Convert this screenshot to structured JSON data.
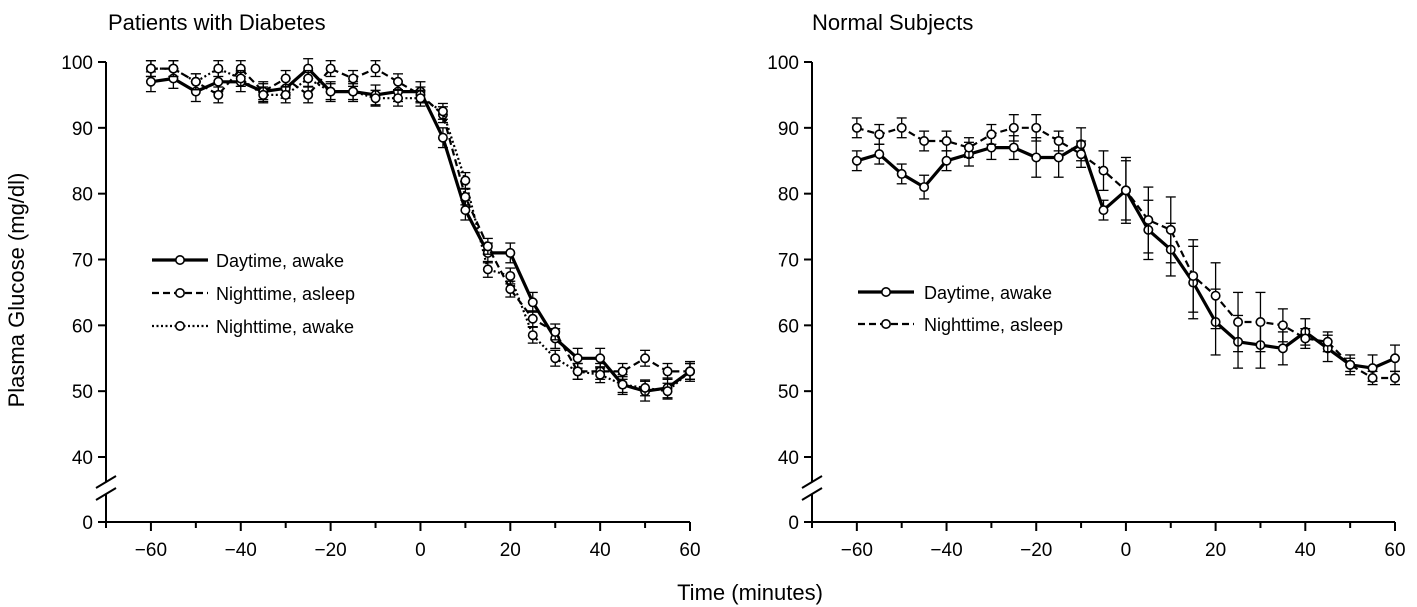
{
  "figure": {
    "ylabel": "Plasma Glucose (mg/dl)",
    "xlabel": "Time (minutes)"
  },
  "chart_data": [
    {
      "type": "line",
      "title": "Patients with Diabetes",
      "xlabel": "Time (minutes)",
      "ylabel": "Plasma Glucose (mg/dl)",
      "xlim": [
        -70,
        60
      ],
      "ylim": [
        0,
        100
      ],
      "axis_break": [
        0,
        40
      ],
      "x_ticks": [
        "−60",
        "−40",
        "−20",
        "0",
        "20",
        "40",
        "60"
      ],
      "y_ticks": [
        "0",
        "40",
        "50",
        "60",
        "70",
        "80",
        "90",
        "100"
      ],
      "legend_position": "center-left",
      "grid": false,
      "series": [
        {
          "name": "Daytime, awake",
          "style": "solid",
          "x": [
            -60,
            -55,
            -50,
            -45,
            -40,
            -35,
            -30,
            -25,
            -20,
            -15,
            -10,
            -5,
            0,
            5,
            10,
            15,
            20,
            25,
            30,
            35,
            40,
            45,
            50,
            55,
            60
          ],
          "y": [
            97,
            97.5,
            95.5,
            97,
            97,
            95.5,
            96,
            99,
            95.5,
            95.5,
            95,
            95.5,
            95.5,
            88.5,
            77.5,
            71,
            71,
            63.5,
            58,
            55,
            55,
            51,
            50,
            50.5,
            53
          ],
          "err": [
            1.5,
            1.5,
            1.5,
            1.5,
            1.5,
            1.5,
            1.5,
            1.5,
            1.5,
            1.5,
            1.5,
            1.5,
            1.5,
            1.5,
            1.5,
            1.5,
            1.5,
            1.5,
            1.5,
            1.5,
            1.5,
            1.5,
            1.5,
            1.5,
            1.5
          ]
        },
        {
          "name": "Nighttime, asleep",
          "style": "dashed",
          "x": [
            -60,
            -55,
            -50,
            -45,
            -40,
            -35,
            -30,
            -25,
            -20,
            -15,
            -10,
            -5,
            0,
            5,
            10,
            15,
            20,
            25,
            30,
            35,
            40,
            45,
            50,
            55,
            60
          ],
          "y": [
            99,
            99,
            97,
            95,
            99,
            95.5,
            97.5,
            95,
            99,
            97.5,
            99,
            97,
            95,
            92,
            79.5,
            72,
            65.5,
            61,
            59,
            53,
            53,
            53,
            55,
            53,
            53
          ],
          "err": [
            1.2,
            1.2,
            1.2,
            1.2,
            1.2,
            1.2,
            1.2,
            1.2,
            1.2,
            1.2,
            1.2,
            1.2,
            1.2,
            1.2,
            1.2,
            1.2,
            1.2,
            1.2,
            1.2,
            1.2,
            1.2,
            1.2,
            1.2,
            1.2,
            1.2
          ]
        },
        {
          "name": "Nighttime, awake",
          "style": "dotted",
          "x": [
            -60,
            -55,
            -50,
            -45,
            -40,
            -35,
            -30,
            -25,
            -20,
            -15,
            -10,
            -5,
            0,
            5,
            10,
            15,
            20,
            25,
            30,
            35,
            40,
            45,
            50,
            55,
            60
          ],
          "y": [
            99,
            99,
            97,
            99,
            97.5,
            95,
            95,
            97.5,
            95.5,
            95.5,
            94.5,
            94.5,
            94.5,
            92.5,
            82,
            68.5,
            67.5,
            58.5,
            55,
            53,
            52.5,
            51,
            50.5,
            50,
            53
          ],
          "err": [
            1.2,
            1.2,
            1.2,
            1.2,
            1.2,
            1.2,
            1.2,
            1.2,
            1.2,
            1.2,
            1.2,
            1.2,
            1.2,
            1.2,
            1.2,
            1.2,
            1.2,
            1.2,
            1.2,
            1.2,
            1.2,
            1.2,
            1.2,
            1.2,
            1.2
          ]
        }
      ]
    },
    {
      "type": "line",
      "title": "Normal Subjects",
      "xlabel": "Time (minutes)",
      "ylabel": "Plasma Glucose (mg/dl)",
      "xlim": [
        -70,
        60
      ],
      "ylim": [
        0,
        100
      ],
      "axis_break": [
        0,
        40
      ],
      "x_ticks": [
        "−60",
        "−40",
        "−20",
        "0",
        "20",
        "40",
        "60"
      ],
      "y_ticks": [
        "0",
        "40",
        "50",
        "60",
        "70",
        "80",
        "90",
        "100"
      ],
      "legend_position": "lower-left",
      "grid": false,
      "series": [
        {
          "name": "Daytime, awake",
          "style": "solid",
          "x": [
            -60,
            -55,
            -50,
            -45,
            -40,
            -35,
            -30,
            -25,
            -20,
            -15,
            -10,
            -5,
            0,
            5,
            10,
            15,
            20,
            25,
            30,
            35,
            40,
            45,
            50,
            55,
            60
          ],
          "y": [
            85,
            86,
            83,
            81,
            85,
            86,
            87,
            87,
            85.5,
            85.5,
            87.5,
            77.5,
            80.5,
            74.5,
            71.5,
            66.5,
            60.5,
            57.5,
            57,
            56.5,
            59,
            56.5,
            54,
            53.5,
            55
          ],
          "err": [
            1.5,
            1.5,
            1.5,
            1.8,
            1.5,
            1.8,
            1.8,
            1.8,
            3,
            3,
            2.5,
            1.5,
            5,
            4.5,
            4,
            5.5,
            5,
            4,
            3.5,
            2.5,
            2,
            2,
            1.5,
            2,
            2
          ]
        },
        {
          "name": "Nighttime, asleep",
          "style": "dashed",
          "x": [
            -60,
            -55,
            -50,
            -45,
            -40,
            -35,
            -30,
            -25,
            -20,
            -15,
            -10,
            -5,
            0,
            5,
            10,
            15,
            20,
            25,
            30,
            35,
            40,
            45,
            50,
            55,
            60
          ],
          "y": [
            90,
            89,
            90,
            88,
            88,
            87,
            89,
            90,
            90,
            88,
            86,
            83.5,
            80.5,
            76,
            74.5,
            67.5,
            64.5,
            60.5,
            60.5,
            60,
            58,
            57.5,
            54,
            52,
            52
          ],
          "err": [
            1.5,
            1.5,
            1.5,
            1.5,
            1.5,
            1.5,
            1.5,
            2,
            2,
            1.5,
            2,
            3,
            4.5,
            5,
            5,
            5.5,
            5,
            4.5,
            4.5,
            2.5,
            1.5,
            1.5,
            1,
            1,
            1
          ]
        }
      ]
    }
  ]
}
